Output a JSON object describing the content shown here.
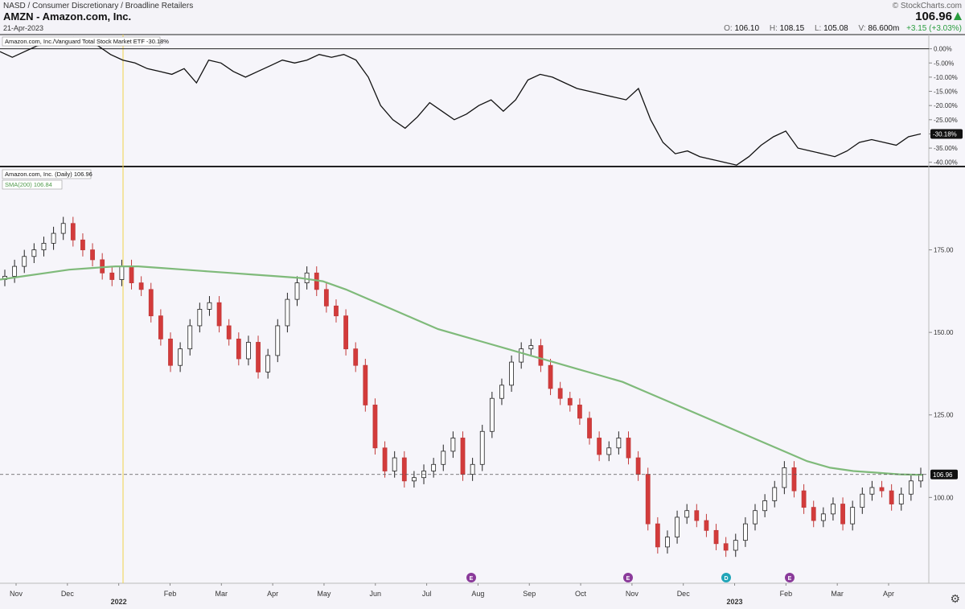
{
  "header": {
    "breadcrumb": "NASD / Consumer Discretionary / Broadline Retailers",
    "title": "AMZN - Amazon.com, Inc.",
    "date": "21-Apr-2023",
    "brand": "© StockCharts.com",
    "last_price": "106.96",
    "open_label": "O:",
    "open": "106.10",
    "high_label": "H:",
    "high": "108.15",
    "low_label": "L:",
    "low": "105.08",
    "volume_label": "V:",
    "volume": "86.600m",
    "change": "+3.15 (+3.03%)"
  },
  "chart_data": [
    {
      "type": "line",
      "legend": "Amazon.com, Inc./Vanguard Total Stock Market ETF -30.18%",
      "yticks": [
        "0.00%",
        "-5.00%",
        "-10.00%",
        "-15.00%",
        "-20.00%",
        "-25.00%",
        "-30.00%",
        "-35.00%",
        "-40.00%"
      ],
      "ytick_values": [
        0,
        -5,
        -10,
        -15,
        -20,
        -25,
        -30,
        -35,
        -40
      ],
      "ylim": [
        -41.5,
        5
      ],
      "last_value_label": "-30.18%",
      "series": [
        {
          "values": [
            -1,
            -3,
            -1,
            1,
            2,
            3,
            4,
            3,
            1,
            -2,
            -4,
            -5,
            -7,
            -8,
            -9,
            -7,
            -12,
            -4,
            -5,
            -8,
            -10,
            -8,
            -6,
            -4,
            -5,
            -4,
            -2,
            -3,
            -2,
            -4,
            -10,
            -20,
            -25,
            -28,
            -24,
            -19,
            -22,
            -25,
            -23,
            -20,
            -18,
            -22,
            -18,
            -11,
            -9,
            -10,
            -12,
            -14,
            -15,
            -16,
            -17,
            -18,
            -14,
            -25,
            -33,
            -37,
            -36,
            -38,
            -39,
            -40,
            -41,
            -38,
            -34,
            -31,
            -29,
            -35,
            -36,
            -37,
            -38,
            -36,
            -33,
            -32,
            -33,
            -34,
            -31,
            -30
          ]
        }
      ]
    },
    {
      "type": "candlestick",
      "legend_main": "Amazon.com, Inc. (Daily) 106.96",
      "legend_sma": "SMA(200) 106.84",
      "yticks": [
        "175.00",
        "150.00",
        "125.00",
        "100.00"
      ],
      "ytick_values": [
        175,
        150,
        125,
        100
      ],
      "ylim": [
        74,
        200
      ],
      "last_price_label": "106.96",
      "last_price": 106.96,
      "xticks": [
        "Nov",
        "Dec",
        "2022",
        "Feb",
        "Mar",
        "Apr",
        "May",
        "Jun",
        "Jul",
        "Aug",
        "Sep",
        "Oct",
        "Nov",
        "Dec",
        "2023",
        "Feb",
        "Mar",
        "Apr"
      ],
      "close": [
        167,
        170,
        173,
        175,
        177,
        180,
        183,
        178,
        175,
        172,
        168,
        166,
        170,
        165,
        163,
        155,
        148,
        140,
        145,
        152,
        157,
        159,
        152,
        148,
        142,
        147,
        138,
        143,
        152,
        160,
        165,
        168,
        163,
        158,
        155,
        145,
        140,
        128,
        115,
        108,
        112,
        105,
        106,
        108,
        110,
        114,
        118,
        107,
        110,
        120,
        130,
        134,
        141,
        145,
        146,
        140,
        133,
        130,
        128,
        124,
        118,
        113,
        115,
        118,
        112,
        107,
        92,
        85,
        88,
        94,
        96,
        93,
        90,
        86,
        84,
        87,
        92,
        96,
        99,
        103,
        109,
        102,
        97,
        93,
        95,
        98,
        92,
        97,
        101,
        103,
        102,
        98,
        101,
        105,
        107
      ],
      "sma": [
        166,
        167,
        168,
        169,
        169.5,
        170,
        170,
        169.5,
        169,
        168.5,
        168,
        167.5,
        167,
        166.5,
        165.5,
        163,
        160,
        157,
        154,
        151,
        149,
        147,
        145,
        143,
        141,
        139,
        137,
        135,
        132,
        129,
        126,
        123,
        120,
        117,
        114,
        111,
        109,
        108,
        107.5,
        107,
        106.84
      ],
      "earnings_markers": [
        "E",
        "E",
        "D",
        "E"
      ]
    }
  ],
  "footer": {
    "settings_icon": "gear-icon"
  }
}
